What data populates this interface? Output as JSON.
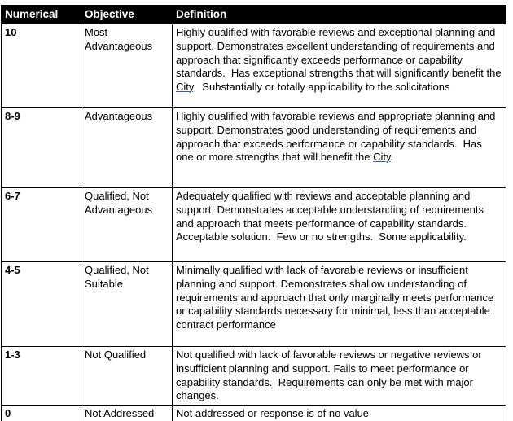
{
  "table": {
    "headers": [
      "Numerical",
      "Objective",
      "Definition"
    ],
    "rows": [
      {
        "numerical": "10",
        "objective": "Most Advantageous",
        "definition": [
          {
            "text": "Highly qualified with favorable reviews and exceptional planning and support. Demonstrates excellent understanding of requirements and approach that significantly exceeds performance or capability standards.  Has exceptional strengths that will significantly benefit the ",
            "underline": false
          },
          {
            "text": "City",
            "underline": true
          },
          {
            "text": ".  Substantially or totally applicability to the solicitations",
            "underline": false
          }
        ]
      },
      {
        "numerical": "8-9",
        "objective": "Advantageous",
        "definition": [
          {
            "text": "Highly qualified with favorable reviews and appropriate planning and support. Demonstrates good understanding of requirements and approach that exceeds performance or capability standards.  Has one or more strengths that will benefit the ",
            "underline": false
          },
          {
            "text": "City",
            "underline": true
          },
          {
            "text": ".",
            "underline": false
          }
        ]
      },
      {
        "numerical": "6-7",
        "objective": "Qualified, Not Advantageous",
        "definition": [
          {
            "text": "Adequately qualified with reviews and acceptable planning and support. Demonstrates acceptable understanding of requirements and approach that meets performance of capability standards.  Acceptable solution.  Few or no strengths.  Some applicability.",
            "underline": false
          }
        ]
      },
      {
        "numerical": "4-5",
        "objective": "Qualified, Not Suitable",
        "definition": [
          {
            "text": "Minimally qualified with lack of favorable reviews or insufficient planning and support. Demonstrates shallow understanding of requirements and approach that only marginally meets performance or capability standards necessary for minimal, less than acceptable contract performance",
            "underline": false
          }
        ]
      },
      {
        "numerical": "1-3",
        "objective": "Not Qualified",
        "definition": [
          {
            "text": "Not qualified with lack of favorable reviews or negative reviews or insufficient planning and support. Fails to meet performance or capability standards.  Requirements can only be met with major changes.",
            "underline": false
          }
        ]
      },
      {
        "numerical": "0",
        "objective": "Not Addressed",
        "definition": [
          {
            "text": "Not addressed or response is of no value",
            "underline": false
          }
        ]
      }
    ]
  },
  "colors": {
    "background": "#ffffff",
    "header_bg": "#000000",
    "header_text": "#ffffff",
    "body_text": "#000000",
    "border": "#000000",
    "underline": "#2e5cb8"
  }
}
